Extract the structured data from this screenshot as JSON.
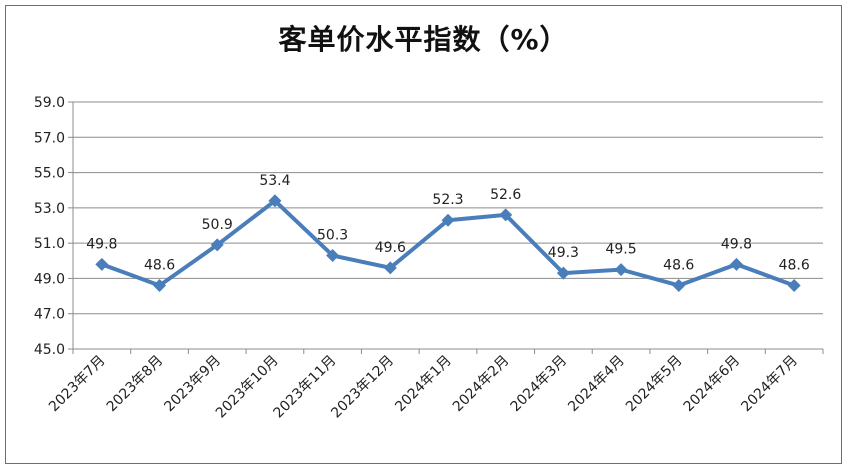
{
  "chart_data": {
    "type": "line",
    "title": "客单价水平指数（%）",
    "categories": [
      "2023年7月",
      "2023年8月",
      "2023年9月",
      "2023年10月",
      "2023年11月",
      "2023年12月",
      "2024年1月",
      "2024年2月",
      "2024年3月",
      "2024年4月",
      "2024年5月",
      "2024年6月",
      "2024年7月"
    ],
    "series": [
      {
        "values": [
          49.8,
          48.6,
          50.9,
          53.4,
          50.3,
          49.6,
          52.3,
          52.6,
          49.3,
          49.5,
          48.6,
          49.8,
          48.6
        ],
        "labels": [
          "49.8",
          "48.6",
          "50.9",
          "53.4",
          "50.3",
          "49.6",
          "52.3",
          "52.6",
          "49.3",
          "49.5",
          "48.6",
          "49.8",
          "48.6"
        ],
        "color": "#4a7ebb"
      }
    ],
    "ylim": [
      45.0,
      59.0
    ],
    "yticks": [
      "45.0",
      "47.0",
      "49.0",
      "51.0",
      "53.0",
      "55.0",
      "57.0",
      "59.0"
    ],
    "grid": true,
    "legend": "none"
  }
}
